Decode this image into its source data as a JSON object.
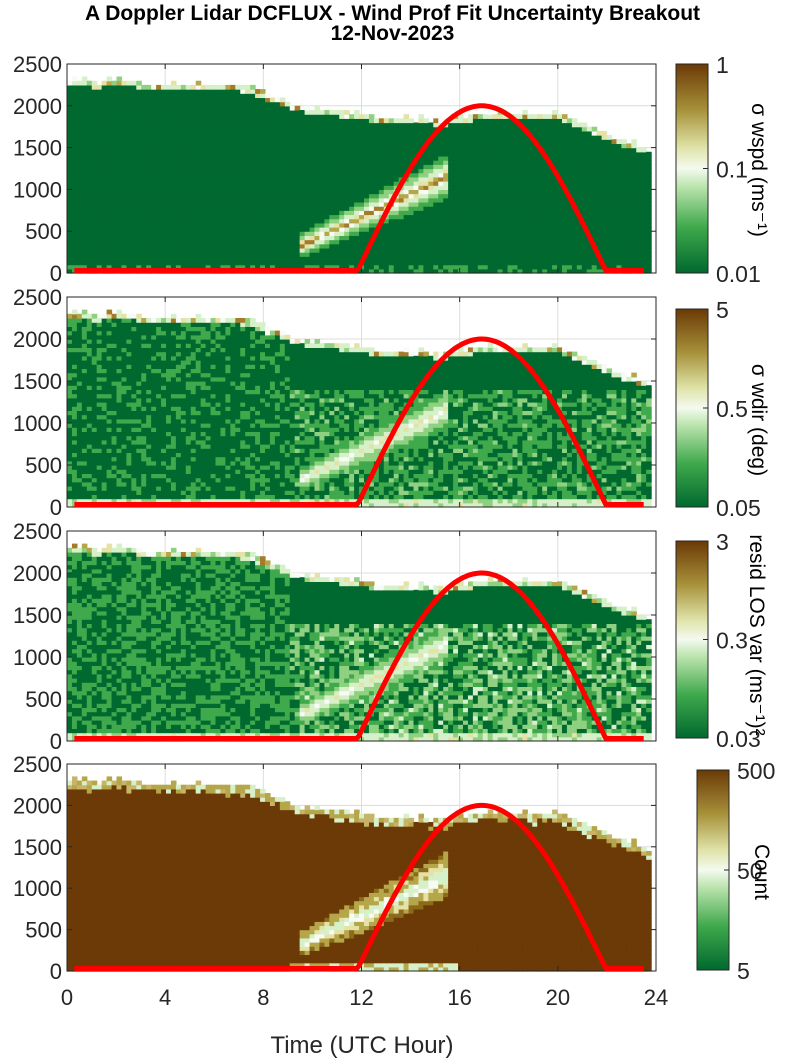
{
  "title_line1": "A Doppler Lidar DCFLUX - Wind Prof Fit Uncertainty Breakout",
  "title_line2": "12-Nov-2023",
  "colors": {
    "dark_green": "#00692f",
    "mid_green": "#3fa94c",
    "light_green": "#d6f1c9",
    "white": "#f7faf5",
    "khaki": "#b6a64a",
    "dark_brown": "#6b3a06",
    "sun_curve": "#ff0000",
    "grid": "#dcdcdc"
  },
  "chart_data": [
    {
      "type": "heatmap",
      "panel": 1,
      "xlabel": "",
      "ylabel": "",
      "xlim": [
        0,
        24
      ],
      "ylim": [
        0,
        2500
      ],
      "x_ticks": [
        "0",
        "4",
        "8",
        "12",
        "16",
        "20",
        "24"
      ],
      "y_ticks": [
        "0",
        "500",
        "1000",
        "1500",
        "2000",
        "2500"
      ],
      "colorbar": {
        "label": "σ wspd (ms⁻¹)",
        "scale": "log",
        "ticks": [
          "1",
          "0.1",
          "0.01"
        ]
      },
      "overlay_curve": {
        "color": "#ff0000",
        "zero_until": 11.8,
        "peak_x": 16.9,
        "peak_y": 2000,
        "zero_after": 22.0
      }
    },
    {
      "type": "heatmap",
      "panel": 2,
      "xlabel": "",
      "ylabel": "",
      "xlim": [
        0,
        24
      ],
      "ylim": [
        0,
        2500
      ],
      "x_ticks": [
        "0",
        "4",
        "8",
        "12",
        "16",
        "20",
        "24"
      ],
      "y_ticks": [
        "0",
        "500",
        "1000",
        "1500",
        "2000",
        "2500"
      ],
      "colorbar": {
        "label": "σ wdir (deg)",
        "scale": "log",
        "ticks": [
          "5",
          "0.5",
          "0.05"
        ]
      },
      "overlay_curve": {
        "color": "#ff0000",
        "zero_until": 11.8,
        "peak_x": 16.9,
        "peak_y": 2000,
        "zero_after": 22.0
      }
    },
    {
      "type": "heatmap",
      "panel": 3,
      "xlabel": "",
      "ylabel": "",
      "xlim": [
        0,
        24
      ],
      "ylim": [
        0,
        2500
      ],
      "x_ticks": [
        "0",
        "4",
        "8",
        "12",
        "16",
        "20",
        "24"
      ],
      "y_ticks": [
        "0",
        "500",
        "1000",
        "1500",
        "2000",
        "2500"
      ],
      "colorbar": {
        "label": "resid LOS var (ms⁻¹)²",
        "scale": "log",
        "ticks": [
          "3",
          "0.3",
          "0.03"
        ]
      },
      "overlay_curve": {
        "color": "#ff0000",
        "zero_until": 11.8,
        "peak_x": 16.9,
        "peak_y": 2000,
        "zero_after": 22.0
      }
    },
    {
      "type": "heatmap",
      "panel": 4,
      "xlabel": "Time (UTC Hour)",
      "ylabel": "",
      "xlim": [
        0,
        24
      ],
      "ylim": [
        0,
        2500
      ],
      "x_ticks": [
        "0",
        "4",
        "8",
        "12",
        "16",
        "20",
        "24"
      ],
      "y_ticks": [
        "0",
        "500",
        "1000",
        "1500",
        "2000",
        "2500"
      ],
      "colorbar": {
        "label": "Count",
        "scale": "log",
        "ticks": [
          "500",
          "50",
          "5"
        ]
      },
      "overlay_curve": {
        "color": "#ff0000",
        "zero_until": 11.8,
        "peak_x": 16.9,
        "peak_y": 2000,
        "zero_after": 22.0
      }
    }
  ]
}
